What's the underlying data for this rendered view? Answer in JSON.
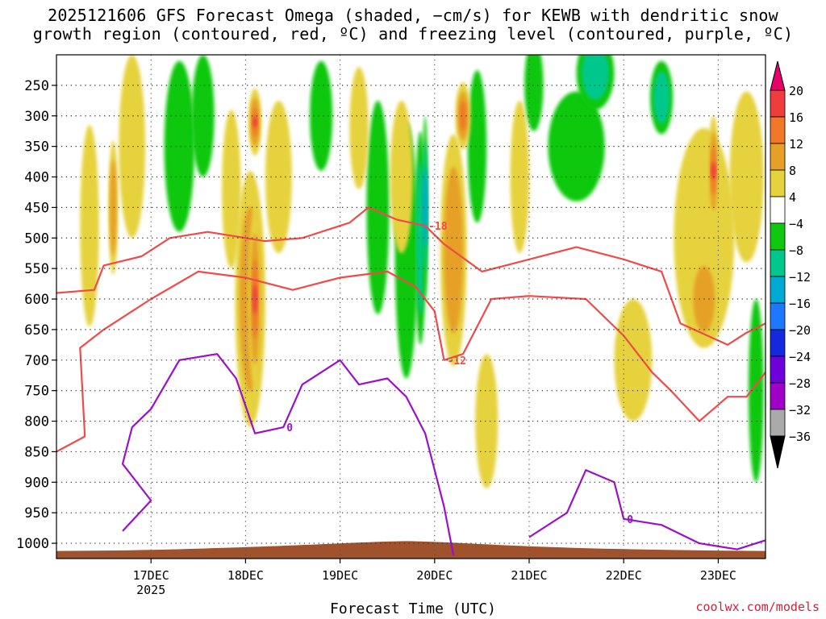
{
  "title": {
    "line1": "2025121606 GFS Forecast Omega (shaded, −cm/s) for KEWB with dendritic snow",
    "line2": "growth region (contoured, red, ºC) and freezing level (contoured, purple, ºC)"
  },
  "watermark": "coolwx.com/models",
  "chart_data": {
    "type": "heatmap",
    "xlabel": "Forecast Time (UTC)",
    "ylabel": "",
    "x_ticks": [
      {
        "label": "17DEC",
        "sub": "2025",
        "day": 1
      },
      {
        "label": "18DEC",
        "sub": "",
        "day": 2
      },
      {
        "label": "19DEC",
        "sub": "",
        "day": 3
      },
      {
        "label": "20DEC",
        "sub": "",
        "day": 4
      },
      {
        "label": "21DEC",
        "sub": "",
        "day": 5
      },
      {
        "label": "22DEC",
        "sub": "",
        "day": 6
      },
      {
        "label": "23DEC",
        "sub": "",
        "day": 7
      }
    ],
    "x_range_days": [
      0.0,
      7.5
    ],
    "y_ticks": [
      250,
      300,
      350,
      400,
      450,
      500,
      550,
      600,
      650,
      700,
      750,
      800,
      850,
      900,
      950,
      1000
    ],
    "y_range_hpa": [
      200,
      1025
    ],
    "colorbar": {
      "labels": [
        "20",
        "16",
        "12",
        "8",
        "4",
        "−4",
        "−8",
        "−12",
        "−16",
        "−20",
        "−24",
        "−28",
        "−32",
        "−36"
      ],
      "colors": [
        "#e8006a",
        "#f03c3c",
        "#f07828",
        "#e6a028",
        "#e6d23c",
        "#ffffff",
        "#10c810",
        "#00c88c",
        "#00aad2",
        "#1e78ff",
        "#1428dc",
        "#6e00dc",
        "#a000c8",
        "#aaaaaa",
        "#000000"
      ]
    },
    "omega_blobs": [
      {
        "t": 0.35,
        "p": 480,
        "w": 0.1,
        "h": 330,
        "level": 1
      },
      {
        "t": 0.6,
        "p": 450,
        "w": 0.05,
        "h": 220,
        "level": 2
      },
      {
        "t": 0.8,
        "p": 350,
        "w": 0.14,
        "h": 300,
        "level": 1
      },
      {
        "t": 1.85,
        "p": 420,
        "w": 0.1,
        "h": 260,
        "level": 1
      },
      {
        "t": 2.05,
        "p": 600,
        "w": 0.16,
        "h": 420,
        "level": 2
      },
      {
        "t": 2.1,
        "p": 600,
        "w": 0.07,
        "h": 300,
        "level": 4
      },
      {
        "t": 2.1,
        "p": 310,
        "w": 0.07,
        "h": 110,
        "level": 4
      },
      {
        "t": 2.35,
        "p": 400,
        "w": 0.14,
        "h": 250,
        "level": 1
      },
      {
        "t": 3.2,
        "p": 320,
        "w": 0.1,
        "h": 200,
        "level": 1
      },
      {
        "t": 3.65,
        "p": 400,
        "w": 0.12,
        "h": 250,
        "level": 1
      },
      {
        "t": 4.2,
        "p": 520,
        "w": 0.14,
        "h": 380,
        "level": 2
      },
      {
        "t": 4.3,
        "p": 300,
        "w": 0.08,
        "h": 110,
        "level": 3
      },
      {
        "t": 4.55,
        "p": 800,
        "w": 0.12,
        "h": 220,
        "level": 1
      },
      {
        "t": 4.9,
        "p": 400,
        "w": 0.1,
        "h": 250,
        "level": 1
      },
      {
        "t": 6.1,
        "p": 700,
        "w": 0.2,
        "h": 200,
        "level": 1
      },
      {
        "t": 6.85,
        "p": 500,
        "w": 0.32,
        "h": 360,
        "level": 1
      },
      {
        "t": 6.85,
        "p": 600,
        "w": 0.16,
        "h": 150,
        "level": 2
      },
      {
        "t": 6.95,
        "p": 390,
        "w": 0.06,
        "h": 180,
        "level": 4
      },
      {
        "t": 7.3,
        "p": 400,
        "w": 0.18,
        "h": 280,
        "level": 1
      }
    ],
    "omega_sink_blobs": [
      {
        "t": 1.3,
        "p": 350,
        "w": 0.16,
        "h": 280,
        "level": -1
      },
      {
        "t": 1.55,
        "p": 300,
        "w": 0.12,
        "h": 200,
        "level": -1
      },
      {
        "t": 2.8,
        "p": 300,
        "w": 0.12,
        "h": 180,
        "level": -1
      },
      {
        "t": 3.4,
        "p": 450,
        "w": 0.12,
        "h": 350,
        "level": -1
      },
      {
        "t": 3.7,
        "p": 520,
        "w": 0.12,
        "h": 420,
        "level": -1
      },
      {
        "t": 3.85,
        "p": 500,
        "w": 0.06,
        "h": 350,
        "level": -2
      },
      {
        "t": 3.9,
        "p": 450,
        "w": 0.03,
        "h": 300,
        "level": -3
      },
      {
        "t": 4.45,
        "p": 350,
        "w": 0.1,
        "h": 250,
        "level": -1
      },
      {
        "t": 5.05,
        "p": 250,
        "w": 0.1,
        "h": 150,
        "level": -1
      },
      {
        "t": 5.5,
        "p": 350,
        "w": 0.3,
        "h": 180,
        "level": -1
      },
      {
        "t": 5.7,
        "p": 230,
        "w": 0.2,
        "h": 120,
        "level": -2
      },
      {
        "t": 6.4,
        "p": 270,
        "w": 0.12,
        "h": 120,
        "level": -2
      },
      {
        "t": 7.4,
        "p": 750,
        "w": 0.08,
        "h": 300,
        "level": -1
      }
    ],
    "contours": [
      {
        "name": "dgz-18",
        "color": "#f04a4a",
        "label": "-18",
        "points": [
          [
            0,
            590
          ],
          [
            0.4,
            585
          ],
          [
            0.5,
            545
          ],
          [
            0.9,
            530
          ],
          [
            1.2,
            500
          ],
          [
            1.6,
            490
          ],
          [
            2.2,
            505
          ],
          [
            2.6,
            500
          ],
          [
            3.1,
            475
          ],
          [
            3.3,
            450
          ],
          [
            3.6,
            470
          ],
          [
            3.9,
            480
          ],
          [
            4.1,
            510
          ],
          [
            4.5,
            555
          ],
          [
            5.0,
            535
          ],
          [
            5.5,
            515
          ],
          [
            6.0,
            535
          ],
          [
            6.4,
            555
          ],
          [
            6.6,
            640
          ],
          [
            7.1,
            675
          ],
          [
            7.3,
            655
          ],
          [
            7.5,
            640
          ]
        ]
      },
      {
        "name": "dgz-12",
        "color": "#f04a4a",
        "label": "-12",
        "points": [
          [
            0,
            850
          ],
          [
            0.3,
            825
          ],
          [
            0.25,
            680
          ],
          [
            0.5,
            650
          ],
          [
            1.0,
            600
          ],
          [
            1.5,
            555
          ],
          [
            2.0,
            565
          ],
          [
            2.5,
            585
          ],
          [
            3.0,
            565
          ],
          [
            3.5,
            555
          ],
          [
            3.8,
            580
          ],
          [
            4.0,
            620
          ],
          [
            4.1,
            700
          ],
          [
            4.3,
            690
          ],
          [
            4.6,
            600
          ],
          [
            5.0,
            595
          ],
          [
            5.6,
            600
          ],
          [
            6.0,
            660
          ],
          [
            6.3,
            720
          ],
          [
            6.5,
            750
          ],
          [
            6.8,
            800
          ],
          [
            7.1,
            760
          ],
          [
            7.3,
            760
          ],
          [
            7.5,
            720
          ]
        ]
      },
      {
        "name": "freezing-0",
        "color": "#9b10c8",
        "label": "0",
        "points": [
          [
            0.7,
            980
          ],
          [
            1.0,
            930
          ],
          [
            0.7,
            870
          ],
          [
            0.8,
            810
          ],
          [
            1.0,
            780
          ],
          [
            1.3,
            700
          ],
          [
            1.7,
            690
          ],
          [
            1.9,
            730
          ],
          [
            2.1,
            820
          ],
          [
            2.4,
            810
          ],
          [
            2.6,
            740
          ],
          [
            3.0,
            700
          ],
          [
            3.2,
            740
          ],
          [
            3.5,
            730
          ],
          [
            3.7,
            760
          ],
          [
            3.9,
            820
          ],
          [
            4.1,
            940
          ],
          [
            4.2,
            1020
          ]
        ]
      },
      {
        "name": "freezing-0b",
        "color": "#9b10c8",
        "label": "0",
        "points": [
          [
            5.0,
            990
          ],
          [
            5.4,
            950
          ],
          [
            5.6,
            880
          ],
          [
            5.9,
            900
          ],
          [
            6.0,
            960
          ],
          [
            6.4,
            970
          ],
          [
            6.8,
            1000
          ],
          [
            7.2,
            1010
          ],
          [
            7.5,
            995
          ]
        ]
      }
    ],
    "terrain": {
      "color": "#a0522d",
      "surface_hpa": 1010
    }
  }
}
